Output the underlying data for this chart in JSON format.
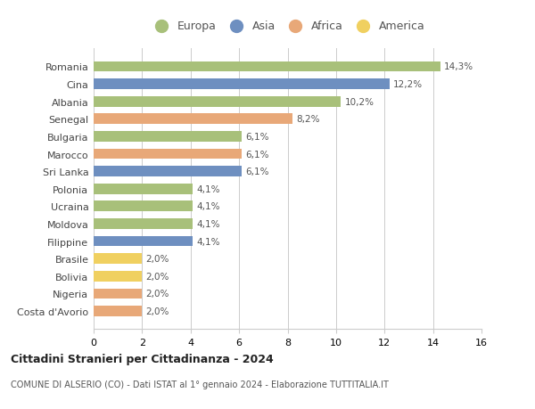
{
  "countries": [
    "Romania",
    "Cina",
    "Albania",
    "Senegal",
    "Bulgaria",
    "Marocco",
    "Sri Lanka",
    "Polonia",
    "Ucraina",
    "Moldova",
    "Filippine",
    "Brasile",
    "Bolivia",
    "Nigeria",
    "Costa d'Avorio"
  ],
  "values": [
    14.3,
    12.2,
    10.2,
    8.2,
    6.1,
    6.1,
    6.1,
    4.1,
    4.1,
    4.1,
    4.1,
    2.0,
    2.0,
    2.0,
    2.0
  ],
  "labels": [
    "14,3%",
    "12,2%",
    "10,2%",
    "8,2%",
    "6,1%",
    "6,1%",
    "6,1%",
    "4,1%",
    "4,1%",
    "4,1%",
    "4,1%",
    "2,0%",
    "2,0%",
    "2,0%",
    "2,0%"
  ],
  "continents": [
    "Europa",
    "Asia",
    "Europa",
    "Africa",
    "Europa",
    "Africa",
    "Asia",
    "Europa",
    "Europa",
    "Europa",
    "Asia",
    "America",
    "America",
    "Africa",
    "Africa"
  ],
  "colors": {
    "Europa": "#a8c07a",
    "Asia": "#6e8fc0",
    "Africa": "#e8a878",
    "America": "#f0d060"
  },
  "legend_order": [
    "Europa",
    "Asia",
    "Africa",
    "America"
  ],
  "xlim": [
    0,
    16
  ],
  "xticks": [
    0,
    2,
    4,
    6,
    8,
    10,
    12,
    14,
    16
  ],
  "title": "Cittadini Stranieri per Cittadinanza - 2024",
  "subtitle": "COMUNE DI ALSERIO (CO) - Dati ISTAT al 1° gennaio 2024 - Elaborazione TUTTITALIA.IT",
  "background_color": "#ffffff",
  "grid_color": "#cccccc"
}
